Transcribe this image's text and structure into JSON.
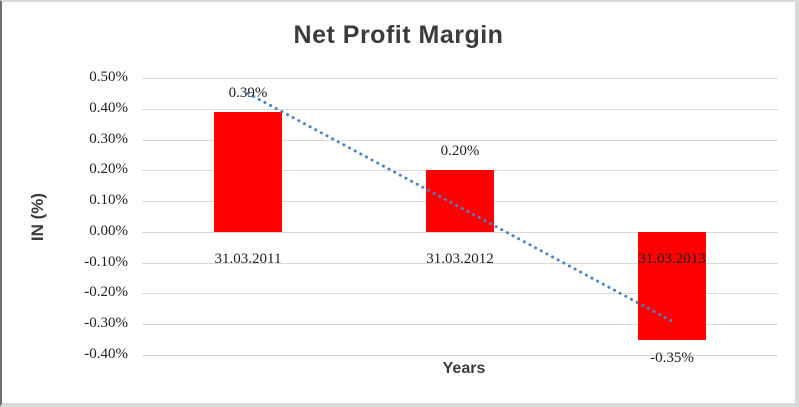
{
  "chart_data": {
    "type": "bar",
    "title": "Net Profit Margin",
    "xlabel": "Years",
    "ylabel": "IN (%)",
    "categories": [
      "31.03.2011",
      "31.03.2012",
      "31.03.2013"
    ],
    "series": [
      {
        "name": "Net Profit Margin",
        "values": [
          0.39,
          0.2,
          -0.35
        ]
      }
    ],
    "data_labels": [
      "0.39%",
      "0.20%",
      "-0.35%"
    ],
    "y_ticks": [
      0.5,
      0.4,
      0.3,
      0.2,
      0.1,
      0.0,
      -0.1,
      -0.2,
      -0.3,
      -0.4
    ],
    "y_tick_labels": [
      "0.50%",
      "0.40%",
      "0.30%",
      "0.20%",
      "0.10%",
      "0.00%",
      "-0.10%",
      "-0.20%",
      "-0.30%",
      "-0.40%"
    ],
    "ylim": [
      -0.4,
      0.5
    ],
    "grid": true,
    "legend": "none",
    "bar_color": "#ff0000",
    "gridline_color": "#d9d9d9",
    "trendline": {
      "type": "linear",
      "style": "dotted",
      "color": "#4e81c2",
      "y_start": 0.45,
      "y_end": -0.29
    }
  }
}
